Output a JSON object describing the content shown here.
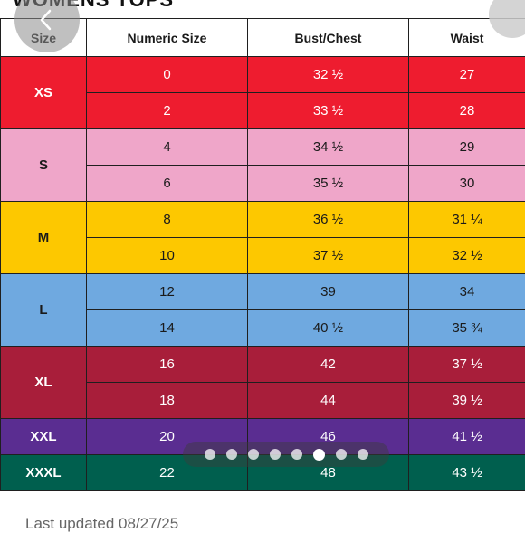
{
  "page": {
    "title": "WOMENS TOPS",
    "last_updated": "Last updated 08/27/25"
  },
  "nav": {
    "back_icon": "chevron-left-icon",
    "close_icon": "close-icon"
  },
  "table": {
    "headers": [
      "Size",
      "Numeric Size",
      "Bust/Chest",
      "Waist"
    ],
    "groups": [
      {
        "size": "XS",
        "color": "#ee1c2f",
        "dark_text": false,
        "rows": [
          [
            "0",
            "32 ½",
            "27"
          ],
          [
            "2",
            "33 ½",
            "28"
          ]
        ]
      },
      {
        "size": "S",
        "color": "#efa6c9",
        "dark_text": true,
        "rows": [
          [
            "4",
            "34 ½",
            "29"
          ],
          [
            "6",
            "35 ½",
            "30"
          ]
        ]
      },
      {
        "size": "M",
        "color": "#fdc800",
        "dark_text": true,
        "rows": [
          [
            "8",
            "36 ½",
            "31 ¼"
          ],
          [
            "10",
            "37 ½",
            "32 ½"
          ]
        ]
      },
      {
        "size": "L",
        "color": "#6fa9e0",
        "dark_text": true,
        "rows": [
          [
            "12",
            "39",
            "34"
          ],
          [
            "14",
            "40 ½",
            "35 ¾"
          ]
        ]
      },
      {
        "size": "XL",
        "color": "#a81e3a",
        "dark_text": false,
        "rows": [
          [
            "16",
            "42",
            "37 ½"
          ],
          [
            "18",
            "44",
            "39 ½"
          ]
        ]
      },
      {
        "size": "XXL",
        "color": "#5a2d91",
        "dark_text": false,
        "rows": [
          [
            "20",
            "46",
            "41 ½"
          ]
        ]
      },
      {
        "size": "XXXL",
        "color": "#005f4e",
        "dark_text": false,
        "rows": [
          [
            "22",
            "48",
            "43 ½"
          ]
        ]
      }
    ]
  },
  "carousel": {
    "count": 8,
    "active_index": 5
  }
}
